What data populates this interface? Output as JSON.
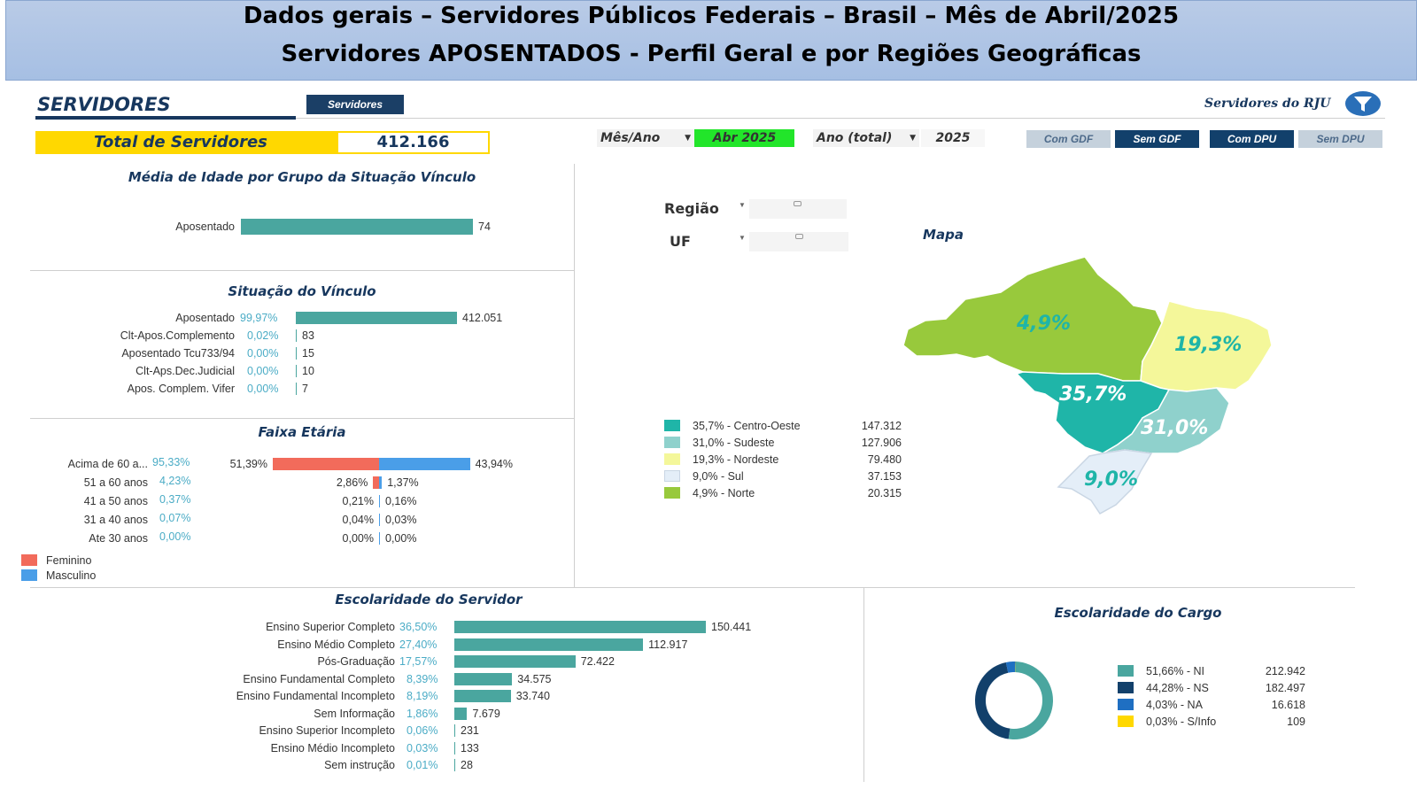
{
  "header": {
    "line1": "Dados gerais – Servidores Públicos Federais – Brasil – Mês de Abril/2025",
    "line2": "Servidores APOSENTADOS - Perfil Geral e por Regiões Geográficas"
  },
  "top": {
    "section_title": "SERVIDORES",
    "servidores_button": "Servidores",
    "rju_label": "Servidores do RJU",
    "total_label": "Total de Servidores",
    "total_value": "412.166",
    "mes_ano_label": "Mês/Ano",
    "mes_ano_value": "Abr 2025",
    "ano_total_label": "Ano (total)",
    "ano_total_value": "2025",
    "toggles": [
      "Com GDF",
      "Sem GDF",
      "Com DPU",
      "Sem DPU"
    ]
  },
  "media_idade": {
    "title": "Média de Idade por Grupo da Situação Vínculo",
    "rows": [
      {
        "label": "Aposentado",
        "value": 74
      }
    ]
  },
  "situacao": {
    "title": "Situação do Vínculo",
    "rows": [
      {
        "label": "Aposentado",
        "pct": "99,97%",
        "value": "412.051",
        "num": 412051
      },
      {
        "label": "Clt-Apos.Complemento",
        "pct": "0,02%",
        "value": "83",
        "num": 83
      },
      {
        "label": "Aposentado Tcu733/94",
        "pct": "0,00%",
        "value": "15",
        "num": 15
      },
      {
        "label": "Clt-Aps.Dec.Judicial",
        "pct": "0,00%",
        "value": "10",
        "num": 10
      },
      {
        "label": "Apos. Complem. Vifer",
        "pct": "0,00%",
        "value": "7",
        "num": 7
      }
    ]
  },
  "faixa": {
    "title": "Faixa Etária",
    "rows": [
      {
        "label": "Acima de 60 a...",
        "pct": "95,33%",
        "fem": "51,39%",
        "masc": "43,94%",
        "fem_num": 51.39,
        "masc_num": 43.94
      },
      {
        "label": "51 a 60 anos",
        "pct": "4,23%",
        "fem": "2,86%",
        "masc": "1,37%",
        "fem_num": 2.86,
        "masc_num": 1.37
      },
      {
        "label": "41 a 50 anos",
        "pct": "0,37%",
        "fem": "0,21%",
        "masc": "0,16%",
        "fem_num": 0.21,
        "masc_num": 0.16
      },
      {
        "label": "31 a 40 anos",
        "pct": "0,07%",
        "fem": "0,04%",
        "masc": "0,03%",
        "fem_num": 0.04,
        "masc_num": 0.03
      },
      {
        "label": "Ate 30 anos",
        "pct": "0,00%",
        "fem": "0,00%",
        "masc": "0,00%",
        "fem_num": 0.0,
        "masc_num": 0.0
      }
    ],
    "legend": [
      {
        "label": "Feminino",
        "color": "#f26b5b"
      },
      {
        "label": "Masculino",
        "color": "#4a9ee8"
      }
    ]
  },
  "regiao": {
    "regiao_label": "Região",
    "uf_label": "UF",
    "map_title": "Mapa",
    "legend": [
      {
        "label": "35,7% - Centro-Oeste",
        "value": "147.312",
        "color": "#1fb5a8"
      },
      {
        "label": "31,0% - Sudeste",
        "value": "127.906",
        "color": "#8fd1cc"
      },
      {
        "label": "19,3% - Nordeste",
        "value": "79.480",
        "color": "#f4f79a"
      },
      {
        "label": "9,0% - Sul",
        "value": "37.153",
        "color": "#e4eef8"
      },
      {
        "label": "4,9% - Norte",
        "value": "20.315",
        "color": "#98c93c"
      }
    ],
    "map_labels": {
      "norte": "4,9%",
      "nordeste": "19,3%",
      "centro": "35,7%",
      "sudeste": "31,0%",
      "sul": "9,0%"
    }
  },
  "escolaridade_servidor": {
    "title": "Escolaridade do Servidor",
    "rows": [
      {
        "label": "Ensino Superior Completo",
        "pct": "36,50%",
        "value": "150.441",
        "num": 150441
      },
      {
        "label": "Ensino Médio Completo",
        "pct": "27,40%",
        "value": "112.917",
        "num": 112917
      },
      {
        "label": "Pós-Graduação",
        "pct": "17,57%",
        "value": "72.422",
        "num": 72422
      },
      {
        "label": "Ensino Fundamental Completo",
        "pct": "8,39%",
        "value": "34.575",
        "num": 34575
      },
      {
        "label": "Ensino Fundamental Incompleto",
        "pct": "8,19%",
        "value": "33.740",
        "num": 33740
      },
      {
        "label": "Sem Informação",
        "pct": "1,86%",
        "value": "7.679",
        "num": 7679
      },
      {
        "label": "Ensino Superior Incompleto",
        "pct": "0,06%",
        "value": "231",
        "num": 231
      },
      {
        "label": "Ensino Médio Incompleto",
        "pct": "0,03%",
        "value": "133",
        "num": 133
      },
      {
        "label": "Sem instrução",
        "pct": "0,01%",
        "value": "28",
        "num": 28
      }
    ]
  },
  "escolaridade_cargo": {
    "title": "Escolaridade do Cargo",
    "legend": [
      {
        "label": "51,66% - NI",
        "value": "212.942",
        "frac": 0.5166,
        "color": "#4aa69f"
      },
      {
        "label": "44,28% - NS",
        "value": "182.497",
        "frac": 0.4428,
        "color": "#12406b"
      },
      {
        "label": "4,03% - NA",
        "value": "16.618",
        "frac": 0.0403,
        "color": "#1f6fc2"
      },
      {
        "label": "0,03% - S/Info",
        "value": "109",
        "frac": 0.0003,
        "color": "#ffd800"
      }
    ]
  }
}
